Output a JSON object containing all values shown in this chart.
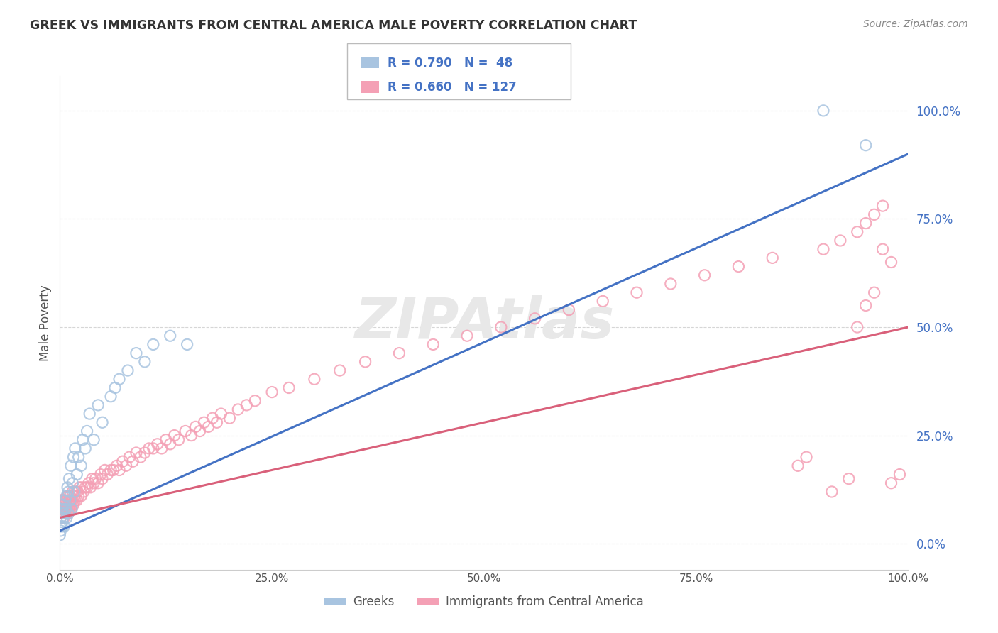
{
  "title": "GREEK VS IMMIGRANTS FROM CENTRAL AMERICA MALE POVERTY CORRELATION CHART",
  "source": "Source: ZipAtlas.com",
  "ylabel": "Male Poverty",
  "watermark": "ZIPAtlas",
  "xlim": [
    0,
    1.0
  ],
  "ylim": [
    -0.06,
    1.08
  ],
  "x_ticks": [
    0.0,
    0.25,
    0.5,
    0.75,
    1.0
  ],
  "x_tick_labels": [
    "0.0%",
    "25.0%",
    "50.0%",
    "75.0%",
    "100.0%"
  ],
  "y_ticks": [
    0.0,
    0.25,
    0.5,
    0.75,
    1.0
  ],
  "y_tick_labels": [
    "0.0%",
    "25.0%",
    "50.0%",
    "75.0%",
    "100.0%"
  ],
  "greek_color": "#a8c4e0",
  "immigrant_color": "#f4a0b5",
  "greek_line_color": "#4472c4",
  "immigrant_line_color": "#d9607a",
  "R_greek": 0.79,
  "N_greek": 48,
  "R_immigrant": 0.66,
  "N_immigrant": 127,
  "legend_label_greek": "Greeks",
  "legend_label_immigrant": "Immigrants from Central America",
  "greek_line_x0": 0.0,
  "greek_line_y0": 0.03,
  "greek_line_x1": 1.0,
  "greek_line_y1": 0.9,
  "immigrant_line_x0": 0.0,
  "immigrant_line_y0": 0.06,
  "immigrant_line_x1": 1.0,
  "immigrant_line_y1": 0.5,
  "greek_scatter_x": [
    0.0,
    0.0,
    0.001,
    0.001,
    0.002,
    0.002,
    0.003,
    0.003,
    0.004,
    0.004,
    0.005,
    0.005,
    0.006,
    0.007,
    0.008,
    0.008,
    0.009,
    0.01,
    0.01,
    0.011,
    0.012,
    0.013,
    0.014,
    0.015,
    0.016,
    0.017,
    0.018,
    0.02,
    0.022,
    0.025,
    0.027,
    0.03,
    0.032,
    0.035,
    0.04,
    0.045,
    0.05,
    0.06,
    0.065,
    0.07,
    0.08,
    0.09,
    0.1,
    0.11,
    0.13,
    0.15,
    0.9,
    0.95
  ],
  "greek_scatter_y": [
    0.02,
    0.04,
    0.03,
    0.06,
    0.04,
    0.07,
    0.05,
    0.08,
    0.06,
    0.09,
    0.04,
    0.07,
    0.1,
    0.08,
    0.06,
    0.11,
    0.13,
    0.07,
    0.12,
    0.15,
    0.1,
    0.18,
    0.08,
    0.14,
    0.2,
    0.12,
    0.22,
    0.16,
    0.2,
    0.18,
    0.24,
    0.22,
    0.26,
    0.3,
    0.24,
    0.32,
    0.28,
    0.34,
    0.36,
    0.38,
    0.4,
    0.44,
    0.42,
    0.46,
    0.48,
    0.46,
    1.0,
    0.92
  ],
  "immigrant_scatter_x": [
    0.0,
    0.0,
    0.0,
    0.0,
    0.001,
    0.001,
    0.001,
    0.002,
    0.002,
    0.002,
    0.003,
    0.003,
    0.003,
    0.004,
    0.004,
    0.005,
    0.005,
    0.005,
    0.006,
    0.006,
    0.007,
    0.007,
    0.008,
    0.008,
    0.009,
    0.009,
    0.01,
    0.01,
    0.01,
    0.011,
    0.011,
    0.012,
    0.012,
    0.013,
    0.013,
    0.014,
    0.015,
    0.015,
    0.016,
    0.017,
    0.018,
    0.019,
    0.02,
    0.021,
    0.022,
    0.023,
    0.025,
    0.026,
    0.028,
    0.03,
    0.032,
    0.034,
    0.036,
    0.038,
    0.04,
    0.042,
    0.045,
    0.048,
    0.05,
    0.053,
    0.056,
    0.06,
    0.063,
    0.067,
    0.07,
    0.074,
    0.078,
    0.082,
    0.086,
    0.09,
    0.095,
    0.1,
    0.105,
    0.11,
    0.115,
    0.12,
    0.125,
    0.13,
    0.135,
    0.14,
    0.148,
    0.155,
    0.16,
    0.165,
    0.17,
    0.175,
    0.18,
    0.185,
    0.19,
    0.2,
    0.21,
    0.22,
    0.23,
    0.25,
    0.27,
    0.3,
    0.33,
    0.36,
    0.4,
    0.44,
    0.48,
    0.52,
    0.56,
    0.6,
    0.64,
    0.68,
    0.72,
    0.76,
    0.8,
    0.84,
    0.87,
    0.88,
    0.9,
    0.91,
    0.92,
    0.93,
    0.94,
    0.94,
    0.95,
    0.95,
    0.96,
    0.96,
    0.97,
    0.97,
    0.98,
    0.98,
    0.99
  ],
  "immigrant_scatter_y": [
    0.07,
    0.08,
    0.09,
    0.1,
    0.06,
    0.08,
    0.09,
    0.07,
    0.09,
    0.1,
    0.07,
    0.08,
    0.1,
    0.08,
    0.09,
    0.06,
    0.08,
    0.1,
    0.07,
    0.09,
    0.08,
    0.1,
    0.07,
    0.09,
    0.08,
    0.11,
    0.07,
    0.09,
    0.11,
    0.08,
    0.1,
    0.09,
    0.11,
    0.08,
    0.1,
    0.09,
    0.1,
    0.12,
    0.09,
    0.11,
    0.1,
    0.12,
    0.1,
    0.12,
    0.11,
    0.13,
    0.11,
    0.13,
    0.12,
    0.13,
    0.13,
    0.14,
    0.13,
    0.15,
    0.14,
    0.15,
    0.14,
    0.16,
    0.15,
    0.17,
    0.16,
    0.17,
    0.17,
    0.18,
    0.17,
    0.19,
    0.18,
    0.2,
    0.19,
    0.21,
    0.2,
    0.21,
    0.22,
    0.22,
    0.23,
    0.22,
    0.24,
    0.23,
    0.25,
    0.24,
    0.26,
    0.25,
    0.27,
    0.26,
    0.28,
    0.27,
    0.29,
    0.28,
    0.3,
    0.29,
    0.31,
    0.32,
    0.33,
    0.35,
    0.36,
    0.38,
    0.4,
    0.42,
    0.44,
    0.46,
    0.48,
    0.5,
    0.52,
    0.54,
    0.56,
    0.58,
    0.6,
    0.62,
    0.64,
    0.66,
    0.18,
    0.2,
    0.68,
    0.12,
    0.7,
    0.15,
    0.72,
    0.5,
    0.74,
    0.55,
    0.76,
    0.58,
    0.78,
    0.68,
    0.14,
    0.65,
    0.16
  ]
}
